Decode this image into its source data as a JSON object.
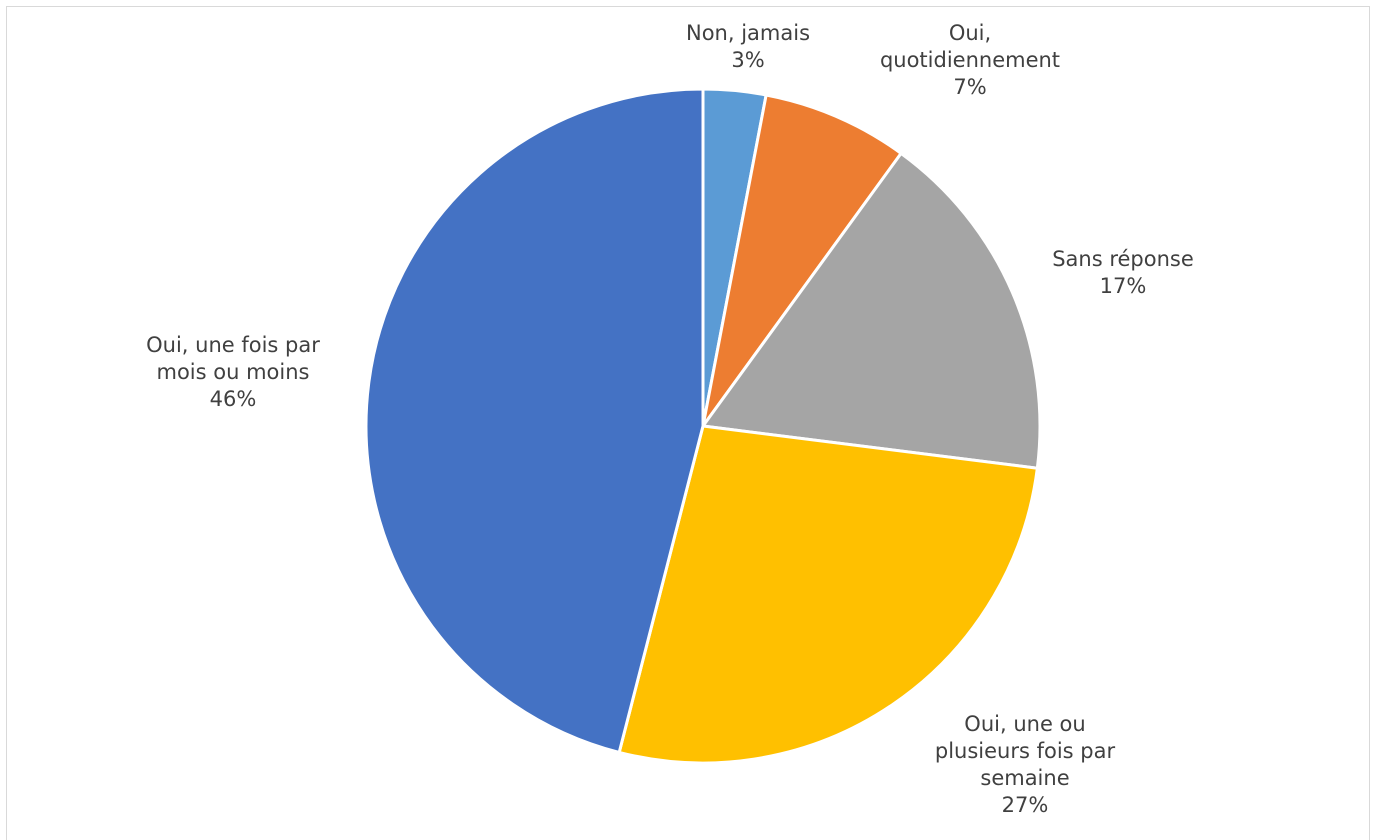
{
  "chart_data": {
    "type": "pie",
    "title": "",
    "slices": [
      {
        "label": "Non, jamais",
        "label_lines": [
          "Non, jamais"
        ],
        "value": 3,
        "percent_label": "3%",
        "color": "#5B9BD5"
      },
      {
        "label": "Oui, quotidiennement",
        "label_lines": [
          "Oui,",
          "quotidiennement"
        ],
        "value": 7,
        "percent_label": "7%",
        "color": "#ED7D31"
      },
      {
        "label": "Sans réponse",
        "label_lines": [
          "Sans réponse"
        ],
        "value": 17,
        "percent_label": "17%",
        "color": "#A5A5A5"
      },
      {
        "label": "Oui, une ou plusieurs fois par semaine",
        "label_lines": [
          "Oui, une ou",
          "plusieurs fois par",
          "semaine"
        ],
        "value": 27,
        "percent_label": "27%",
        "color": "#FFC000"
      },
      {
        "label": "Oui, une fois par mois ou moins",
        "label_lines": [
          "Oui, une fois par",
          "mois ou moins"
        ],
        "value": 46,
        "percent_label": "46%",
        "color": "#4472C4"
      }
    ],
    "legend": "none",
    "data_labels": "outside"
  }
}
